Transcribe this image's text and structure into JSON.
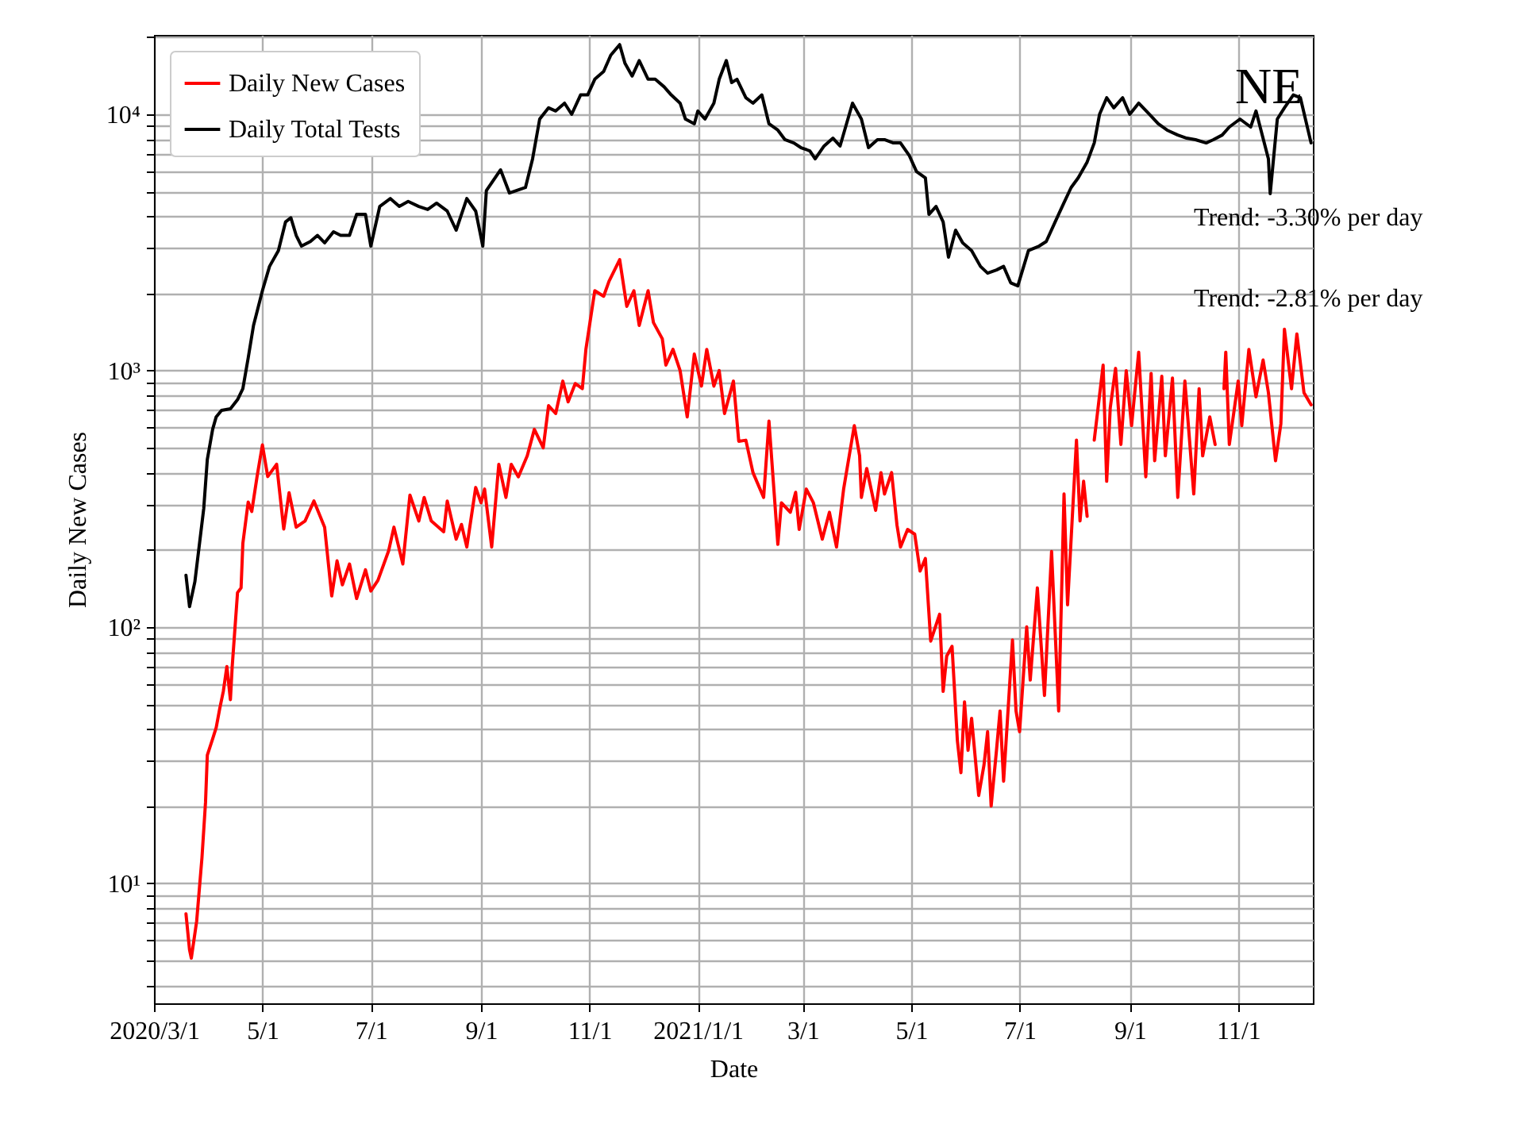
{
  "chart_data": {
    "type": "line",
    "xlabel": "Date",
    "ylabel": "Daily New Cases",
    "log": "y",
    "grid": true,
    "legend": "top left",
    "annotations": [
      "NE",
      "Trend: -3.30% per day",
      "Trend: -2.81% per day"
    ],
    "xlim": [
      "2020-03-01",
      "2021-12-13"
    ],
    "xticks": [
      {
        "value": "2020-03-01",
        "label": "2020/3/1"
      },
      {
        "value": "2020-05-01",
        "label": "5/1"
      },
      {
        "value": "2020-07-01",
        "label": "7/1"
      },
      {
        "value": "2020-09-01",
        "label": "9/1"
      },
      {
        "value": "2020-11-01",
        "label": "11/1"
      },
      {
        "value": "2021-01-01",
        "label": "2021/1/1"
      },
      {
        "value": "2021-03-01",
        "label": "3/1"
      },
      {
        "value": "2021-05-01",
        "label": "5/1"
      },
      {
        "value": "2021-07-01",
        "label": "7/1"
      },
      {
        "value": "2021-09-01",
        "label": "9/1"
      },
      {
        "value": "2021-11-01",
        "label": "11/1"
      }
    ],
    "ylim": [
      3.4,
      20400
    ],
    "yticks": [
      {
        "value": 4,
        "label": null
      },
      {
        "value": 5,
        "label": null
      },
      {
        "value": 6,
        "label": null
      },
      {
        "value": 7,
        "label": null
      },
      {
        "value": 8,
        "label": null
      },
      {
        "value": 9,
        "label": null
      },
      {
        "value": 10,
        "label": "10¹"
      },
      {
        "value": 20,
        "label": null
      },
      {
        "value": 30,
        "label": null
      },
      {
        "value": 40,
        "label": null
      },
      {
        "value": 50,
        "label": null
      },
      {
        "value": 60,
        "label": null
      },
      {
        "value": 70,
        "label": null
      },
      {
        "value": 80,
        "label": null
      },
      {
        "value": 90,
        "label": null
      },
      {
        "value": 100,
        "label": "10²"
      },
      {
        "value": 200,
        "label": null
      },
      {
        "value": 300,
        "label": null
      },
      {
        "value": 400,
        "label": null
      },
      {
        "value": 500,
        "label": null
      },
      {
        "value": 600,
        "label": null
      },
      {
        "value": 700,
        "label": null
      },
      {
        "value": 800,
        "label": null
      },
      {
        "value": 900,
        "label": null
      },
      {
        "value": 1000,
        "label": "10³"
      },
      {
        "value": 2000,
        "label": null
      },
      {
        "value": 3000,
        "label": null
      },
      {
        "value": 4000,
        "label": null
      },
      {
        "value": 5000,
        "label": null
      },
      {
        "value": 6000,
        "label": null
      },
      {
        "value": 7000,
        "label": null
      },
      {
        "value": 8000,
        "label": null
      },
      {
        "value": 9000,
        "label": null
      },
      {
        "value": 10000,
        "label": "10⁴"
      },
      {
        "value": 20000,
        "label": null
      }
    ],
    "series": [
      {
        "name": "Daily New Cases",
        "color": "#ff0000",
        "x": [
          "2020-03-19",
          "2020-03-21",
          "2020-03-22",
          "2020-03-25",
          "2020-03-28",
          "2020-03-30",
          "2020-03-31",
          "2020-04-03",
          "2020-04-05",
          "2020-04-07",
          "2020-04-09",
          "2020-04-11",
          "2020-04-13",
          "2020-04-14",
          "2020-04-17",
          "2020-04-19",
          "2020-04-20",
          "2020-04-23",
          "2020-04-25",
          "2020-04-28",
          "2020-05-01",
          "2020-05-04",
          "2020-05-09",
          "2020-05-13",
          "2020-05-16",
          "2020-05-20",
          "2020-05-25",
          "2020-05-30",
          "2020-06-05",
          "2020-06-09",
          "2020-06-12",
          "2020-06-15",
          "2020-06-19",
          "2020-06-23",
          "2020-06-28",
          "2020-07-01",
          "2020-07-05",
          "2020-07-11",
          "2020-07-14",
          "2020-07-19",
          "2020-07-23",
          "2020-07-28",
          "2020-07-31",
          "2020-08-04",
          "2020-08-11",
          "2020-08-13",
          "2020-08-18",
          "2020-08-21",
          "2020-08-24",
          "2020-08-29",
          "2020-09-01",
          "2020-09-03",
          "2020-09-07",
          "2020-09-11",
          "2020-09-15",
          "2020-09-18",
          "2020-09-22",
          "2020-09-27",
          "2020-10-01",
          "2020-10-06",
          "2020-10-09",
          "2020-10-13",
          "2020-10-17",
          "2020-10-20",
          "2020-10-24",
          "2020-10-28",
          "2020-10-30",
          "2020-11-04",
          "2020-11-09",
          "2020-11-12",
          "2020-11-18",
          "2020-11-22",
          "2020-11-26",
          "2020-11-29",
          "2020-12-04",
          "2020-12-07",
          "2020-12-12",
          "2020-12-14",
          "2020-12-18",
          "2020-12-22",
          "2020-12-26",
          "2020-12-30",
          "2021-01-03",
          "2021-01-06",
          "2021-01-10",
          "2021-01-13",
          "2021-01-16",
          "2021-01-21",
          "2021-01-24",
          "2021-01-28",
          "2021-02-01",
          "2021-02-07",
          "2021-02-10",
          "2021-02-15",
          "2021-02-17",
          "2021-02-22",
          "2021-02-25",
          "2021-02-27",
          "2021-03-03",
          "2021-03-07",
          "2021-03-12",
          "2021-03-16",
          "2021-03-20",
          "2021-03-24",
          "2021-03-30",
          "2021-04-02",
          "2021-04-03",
          "2021-04-06",
          "2021-04-11",
          "2021-04-14",
          "2021-04-16",
          "2021-04-20",
          "2021-04-23",
          "2021-04-25",
          "2021-04-29",
          "2021-05-03",
          "2021-05-06",
          "2021-05-09",
          "2021-05-12",
          "2021-05-17",
          "2021-05-19",
          "2021-05-21",
          "2021-05-24",
          "2021-05-27",
          "2021-05-29",
          "2021-05-31",
          "2021-06-02",
          "2021-06-04",
          "2021-06-08",
          "2021-06-11",
          "2021-06-13",
          "2021-06-15",
          "2021-06-18",
          "2021-06-20",
          "2021-06-22",
          "2021-06-27",
          "2021-06-29",
          "2021-07-01",
          "2021-07-05",
          "2021-07-07",
          "2021-07-11",
          "2021-07-15",
          "2021-07-19",
          "2021-07-23",
          "2021-07-26",
          "2021-07-28",
          "2021-08-02",
          "2021-08-04",
          "2021-08-06",
          "2021-08-08",
          "2021-08-10",
          "2021-08-12",
          "2021-08-17",
          "2021-08-19",
          "2021-08-21",
          "2021-08-24",
          "2021-08-27",
          "2021-08-30",
          "2021-09-02",
          "2021-09-06",
          "2021-09-10",
          "2021-09-13",
          "2021-09-15",
          "2021-09-19",
          "2021-09-21",
          "2021-09-25",
          "2021-09-28",
          "2021-10-02",
          "2021-10-07",
          "2021-10-10",
          "2021-10-12",
          "2021-10-16",
          "2021-10-19",
          "2021-10-21",
          "2021-10-24",
          "2021-10-25",
          "2021-10-27",
          "2021-11-01",
          "2021-11-03",
          "2021-11-07",
          "2021-11-11",
          "2021-11-15",
          "2021-11-18",
          "2021-11-22",
          "2021-11-25",
          "2021-11-27",
          "2021-12-01",
          "2021-12-04",
          "2021-12-08",
          "2021-12-12"
        ],
        "values": [
          7.6,
          5.5,
          5.1,
          7.1,
          12.6,
          20.7,
          31.6,
          36.6,
          40.5,
          48,
          56,
          70,
          52,
          70,
          136,
          142,
          212,
          307,
          282,
          386,
          513,
          386,
          431,
          241,
          334,
          245,
          259,
          310,
          245,
          132,
          181,
          146,
          176,
          129,
          167,
          138,
          152,
          198,
          245,
          176,
          327,
          259,
          320,
          259,
          235,
          310,
          220,
          251,
          205,
          350,
          305,
          345,
          205,
          431,
          320,
          431,
          385,
          465,
          590,
          500,
          730,
          680,
          910,
          755,
          890,
          850,
          1210,
          2050,
          1950,
          2230,
          2710,
          1780,
          2050,
          1500,
          2050,
          1540,
          1330,
          1050,
          1210,
          1000,
          660,
          1160,
          870,
          1210,
          870,
          1000,
          680,
          910,
          530,
          535,
          400,
          320,
          635,
          210,
          305,
          280,
          335,
          240,
          345,
          305,
          220,
          280,
          205,
          345,
          610,
          465,
          320,
          415,
          285,
          400,
          330,
          400,
          250,
          205,
          240,
          230,
          165,
          185,
          88,
          112,
          56,
          77,
          84,
          36,
          27,
          51,
          33,
          44,
          22,
          29,
          39,
          20,
          33,
          47,
          25,
          89,
          47,
          39,
          100,
          62,
          142,
          54,
          197,
          47,
          330,
          122,
          535,
          259,
          370,
          270,
          null,
          535,
          1050,
          370,
          715,
          1020,
          515,
          1000,
          610,
          1180,
          385,
          975,
          445,
          950,
          465,
          935,
          320,
          910,
          330,
          850,
          465,
          660,
          515,
          null,
          850,
          1180,
          515,
          910,
          610,
          1210,
          790,
          1100,
          820,
          445,
          620,
          1450,
          850,
          1390,
          820,
          735
        ]
      },
      {
        "name": "Daily Total Tests",
        "color": "#000000",
        "x": [
          "2020-03-19",
          "2020-03-21",
          "2020-03-24",
          "2020-03-29",
          "2020-03-31",
          "2020-04-03",
          "2020-04-05",
          "2020-04-08",
          "2020-04-13",
          "2020-04-17",
          "2020-04-20",
          "2020-04-23",
          "2020-04-26",
          "2020-05-01",
          "2020-05-05",
          "2020-05-10",
          "2020-05-14",
          "2020-05-17",
          "2020-05-20",
          "2020-05-23",
          "2020-05-28",
          "2020-06-01",
          "2020-06-05",
          "2020-06-10",
          "2020-06-14",
          "2020-06-19",
          "2020-06-23",
          "2020-06-28",
          "2020-07-01",
          "2020-07-06",
          "2020-07-12",
          "2020-07-17",
          "2020-07-22",
          "2020-07-28",
          "2020-08-02",
          "2020-08-07",
          "2020-08-13",
          "2020-08-18",
          "2020-08-24",
          "2020-08-29",
          "2020-09-02",
          "2020-09-04",
          "2020-09-12",
          "2020-09-17",
          "2020-09-26",
          "2020-09-30",
          "2020-10-04",
          "2020-10-09",
          "2020-10-13",
          "2020-10-18",
          "2020-10-22",
          "2020-10-27",
          "2020-10-31",
          "2020-11-04",
          "2020-11-09",
          "2020-11-13",
          "2020-11-18",
          "2020-11-21",
          "2020-11-25",
          "2020-11-29",
          "2020-12-04",
          "2020-12-08",
          "2020-12-13",
          "2020-12-17",
          "2020-12-22",
          "2020-12-25",
          "2020-12-30",
          "2021-01-01",
          "2021-01-05",
          "2021-01-10",
          "2021-01-13",
          "2021-01-17",
          "2021-01-20",
          "2021-01-23",
          "2021-01-28",
          "2021-02-01",
          "2021-02-06",
          "2021-02-10",
          "2021-02-15",
          "2021-02-19",
          "2021-02-24",
          "2021-02-28",
          "2021-03-05",
          "2021-03-08",
          "2021-03-13",
          "2021-03-18",
          "2021-03-22",
          "2021-03-29",
          "2021-04-03",
          "2021-04-07",
          "2021-04-12",
          "2021-04-16",
          "2021-04-21",
          "2021-04-25",
          "2021-04-30",
          "2021-05-04",
          "2021-05-09",
          "2021-05-11",
          "2021-05-15",
          "2021-05-19",
          "2021-05-22",
          "2021-05-26",
          "2021-05-30",
          "2021-06-04",
          "2021-06-09",
          "2021-06-13",
          "2021-06-18",
          "2021-06-22",
          "2021-06-26",
          "2021-06-30",
          "2021-07-06",
          "2021-07-12",
          "2021-07-16",
          "2021-07-21",
          "2021-07-25",
          "2021-07-30",
          "2021-08-03",
          "2021-08-08",
          "2021-08-12",
          "2021-08-15",
          "2021-08-19",
          "2021-08-23",
          "2021-08-28",
          "2021-09-01",
          "2021-09-06",
          "2021-09-12",
          "2021-09-17",
          "2021-09-22",
          "2021-09-28",
          "2021-10-03",
          "2021-10-08",
          "2021-10-14",
          "2021-10-18",
          "2021-10-23",
          "2021-10-27",
          "2021-11-02",
          "2021-11-08",
          "2021-11-11",
          "2021-11-18",
          "2021-11-19",
          "2021-11-23",
          "2021-11-27",
          "2021-12-02",
          "2021-12-06",
          "2021-12-12"
        ],
        "values": [
          159,
          120,
          150,
          290,
          450,
          590,
          660,
          700,
          710,
          770,
          850,
          1120,
          1500,
          2050,
          2550,
          2940,
          3800,
          3950,
          3370,
          3060,
          3190,
          3370,
          3150,
          3480,
          3370,
          3370,
          4070,
          4070,
          3060,
          4370,
          4690,
          4370,
          4570,
          4370,
          4250,
          4500,
          4190,
          3530,
          4690,
          4190,
          3060,
          5040,
          6070,
          4930,
          5180,
          6700,
          9580,
          10600,
          10300,
          11050,
          10000,
          11900,
          11900,
          13700,
          14700,
          17000,
          18700,
          15800,
          14100,
          16200,
          13700,
          13700,
          12800,
          11900,
          11050,
          9580,
          9180,
          10300,
          9580,
          11050,
          13700,
          16200,
          13300,
          13700,
          11600,
          11050,
          11900,
          9180,
          8670,
          7960,
          7730,
          7410,
          7200,
          6700,
          7520,
          8070,
          7520,
          11050,
          9580,
          7410,
          7960,
          7960,
          7730,
          7730,
          6890,
          5980,
          5650,
          4070,
          4370,
          3800,
          2770,
          3530,
          3150,
          2940,
          2550,
          2400,
          2470,
          2550,
          2200,
          2140,
          2940,
          3060,
          3190,
          3800,
          4370,
          5180,
          5650,
          6510,
          7730,
          10000,
          11600,
          10600,
          11600,
          10000,
          11050,
          10000,
          9180,
          8670,
          8300,
          8070,
          7960,
          7730,
          7960,
          8300,
          8920,
          9580,
          8920,
          10300,
          6700,
          4900,
          9580,
          10600,
          11900,
          11600,
          7730
        ]
      }
    ]
  }
}
